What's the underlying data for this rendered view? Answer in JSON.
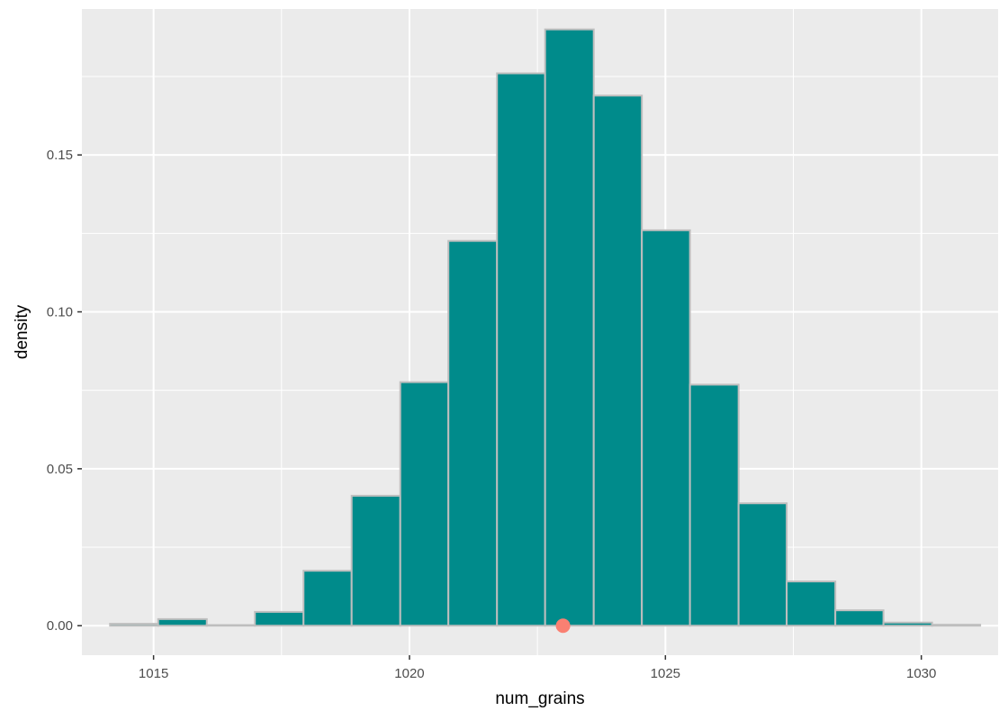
{
  "chart_data": {
    "type": "bar",
    "subtype": "histogram",
    "title": "",
    "xlabel": "num_grains",
    "ylabel": "density",
    "xlim": [
      1013.6,
      1031.5
    ],
    "ylim": [
      -0.0094,
      0.1965
    ],
    "x_ticks": [
      1015,
      1020,
      1025,
      1030
    ],
    "x_tick_labels": [
      "1015",
      "1020",
      "1025",
      "1030"
    ],
    "y_ticks": [
      0.0,
      0.05,
      0.1,
      0.15
    ],
    "y_tick_labels": [
      "0.00",
      "0.05",
      "0.10",
      "0.15"
    ],
    "grid": true,
    "bin_width": 0.944,
    "bins": [
      {
        "x0": 1014.15,
        "x1": 1015.09,
        "value": 0.0006
      },
      {
        "x0": 1015.09,
        "x1": 1016.04,
        "value": 0.0021
      },
      {
        "x0": 1016.04,
        "x1": 1016.98,
        "value": 0.0002
      },
      {
        "x0": 1016.98,
        "x1": 1017.93,
        "value": 0.0044
      },
      {
        "x0": 1017.93,
        "x1": 1018.87,
        "value": 0.0175
      },
      {
        "x0": 1018.87,
        "x1": 1019.82,
        "value": 0.0414
      },
      {
        "x0": 1019.82,
        "x1": 1020.76,
        "value": 0.0776
      },
      {
        "x0": 1020.76,
        "x1": 1021.71,
        "value": 0.1226
      },
      {
        "x0": 1021.71,
        "x1": 1022.65,
        "value": 0.176
      },
      {
        "x0": 1022.65,
        "x1": 1023.6,
        "value": 0.19
      },
      {
        "x0": 1023.6,
        "x1": 1024.54,
        "value": 0.1689
      },
      {
        "x0": 1024.54,
        "x1": 1025.48,
        "value": 0.126
      },
      {
        "x0": 1025.48,
        "x1": 1026.43,
        "value": 0.0768
      },
      {
        "x0": 1026.43,
        "x1": 1027.37,
        "value": 0.039
      },
      {
        "x0": 1027.37,
        "x1": 1028.32,
        "value": 0.0141
      },
      {
        "x0": 1028.32,
        "x1": 1029.26,
        "value": 0.0049
      },
      {
        "x0": 1029.26,
        "x1": 1030.21,
        "value": 0.001
      },
      {
        "x0": 1030.21,
        "x1": 1031.15,
        "value": 0.0003
      }
    ],
    "points": [
      {
        "x": 1023.0,
        "y": 0.0
      }
    ],
    "colors": {
      "panel_background": "#ebebeb",
      "grid": "#ffffff",
      "bar_fill": "#008b8b",
      "bar_outline": "#bebebe",
      "point": "#fa8072",
      "tick_label": "#4d4d4d",
      "axis_title": "#000000"
    }
  }
}
